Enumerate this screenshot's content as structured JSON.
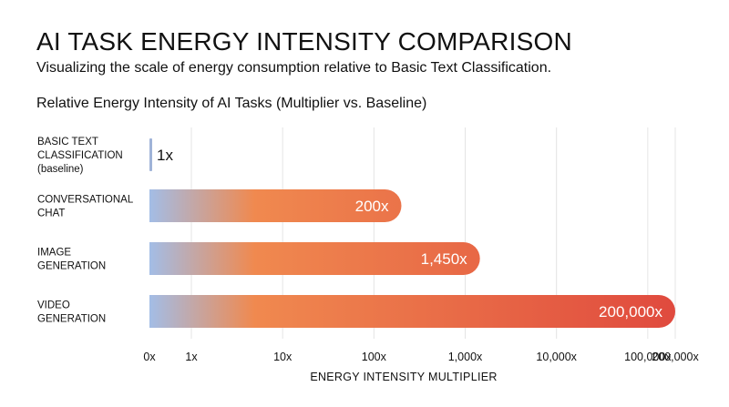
{
  "header": {
    "title": "AI TASK ENERGY INTENSITY COMPARISON",
    "subtitle": "Visualizing the scale of energy consumption relative to Basic Text Classification."
  },
  "chart_data": {
    "type": "bar",
    "orientation": "horizontal",
    "title": "Relative Energy Intensity of AI Tasks (Multiplier vs. Baseline)",
    "xlabel": "ENERGY INTENSITY MULTIPLIER",
    "ylabel": "",
    "scale": "log",
    "grid": true,
    "categories": [
      [
        "BASIC TEXT",
        "CLASSIFICATION",
        "(baseline)"
      ],
      [
        "CONVERSATIONAL",
        "CHAT"
      ],
      [
        "IMAGE",
        "GENERATION"
      ],
      [
        "VIDEO",
        "GENERATION"
      ]
    ],
    "values": [
      1,
      200,
      1450,
      200000
    ],
    "value_labels": [
      "1x",
      "200x",
      "1,450x",
      "200,000x"
    ],
    "ticks": [
      {
        "value": 0,
        "label": "0x"
      },
      {
        "value": 1,
        "label": "1x"
      },
      {
        "value": 10,
        "label": "10x"
      },
      {
        "value": 100,
        "label": "100x"
      },
      {
        "value": 1000,
        "label": "1,000x"
      },
      {
        "value": 10000,
        "label": "10,000x"
      },
      {
        "value": 100000,
        "label": "100,000x"
      },
      {
        "value": 200000,
        "label": "200,000x"
      }
    ],
    "colors": {
      "gradient_start": "#a3bde6",
      "gradient_mid": "#f0894f",
      "gradient_end": "#e04a3e",
      "baseline_bar": "#9fb3d8",
      "grid": "#e4e4e4"
    }
  }
}
